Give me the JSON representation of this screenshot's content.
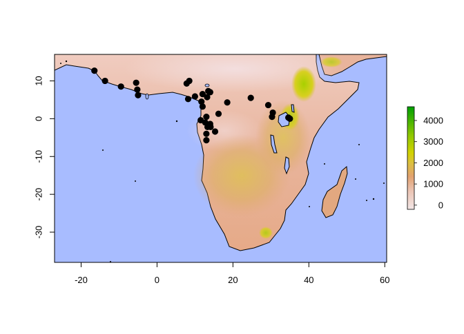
{
  "map": {
    "xlim": [
      -27,
      60.5
    ],
    "ylim": [
      -38,
      17
    ],
    "x_ticks": [
      -20,
      0,
      20,
      40,
      60
    ],
    "y_ticks": [
      10,
      0,
      -10,
      -20,
      -30
    ],
    "ocean_color": "#a8bcff",
    "coast_color": "#000000",
    "elevation_colors": [
      "#f2e4e4",
      "#e8b8a8",
      "#e0a070",
      "#d7b040",
      "#c8cc00",
      "#70c000",
      "#00a000"
    ]
  },
  "legend": {
    "ticks": [
      0,
      1000,
      2000,
      3000,
      4000
    ],
    "range": [
      -200,
      4650
    ]
  },
  "points": [
    {
      "lon": -16.5,
      "lat": 12.7
    },
    {
      "lon": -13.7,
      "lat": 10.0
    },
    {
      "lon": -9.5,
      "lat": 8.5
    },
    {
      "lon": -5.5,
      "lat": 9.5
    },
    {
      "lon": -5.2,
      "lat": 7.7
    },
    {
      "lon": -5.0,
      "lat": 6.2
    },
    {
      "lon": 7.8,
      "lat": 9.3
    },
    {
      "lon": 8.5,
      "lat": 10.0
    },
    {
      "lon": 8.2,
      "lat": 5.2
    },
    {
      "lon": 10.0,
      "lat": 5.9
    },
    {
      "lon": 11.7,
      "lat": 4.5
    },
    {
      "lon": 12.0,
      "lat": 6.5
    },
    {
      "lon": 12.0,
      "lat": 3.2
    },
    {
      "lon": 13.2,
      "lat": 5.7
    },
    {
      "lon": 13.5,
      "lat": 7.3
    },
    {
      "lon": 14.0,
      "lat": 7.0
    },
    {
      "lon": 11.5,
      "lat": -0.4
    },
    {
      "lon": 12.7,
      "lat": -1.0
    },
    {
      "lon": 13.0,
      "lat": 0.5
    },
    {
      "lon": 13.3,
      "lat": -2.2
    },
    {
      "lon": 14.0,
      "lat": -1.4
    },
    {
      "lon": 14.1,
      "lat": -2.2
    },
    {
      "lon": 13.0,
      "lat": -4.0
    },
    {
      "lon": 13.0,
      "lat": -5.7
    },
    {
      "lon": 15.3,
      "lat": -3.4
    },
    {
      "lon": 16.2,
      "lat": 1.3
    },
    {
      "lon": 18.5,
      "lat": 4.3
    },
    {
      "lon": 24.7,
      "lat": 5.5
    },
    {
      "lon": 29.3,
      "lat": 3.6
    },
    {
      "lon": 30.5,
      "lat": 1.6
    },
    {
      "lon": 30.3,
      "lat": 0.5
    },
    {
      "lon": 34.6,
      "lat": 0.3
    },
    {
      "lon": 35.0,
      "lat": 0.0
    }
  ]
}
